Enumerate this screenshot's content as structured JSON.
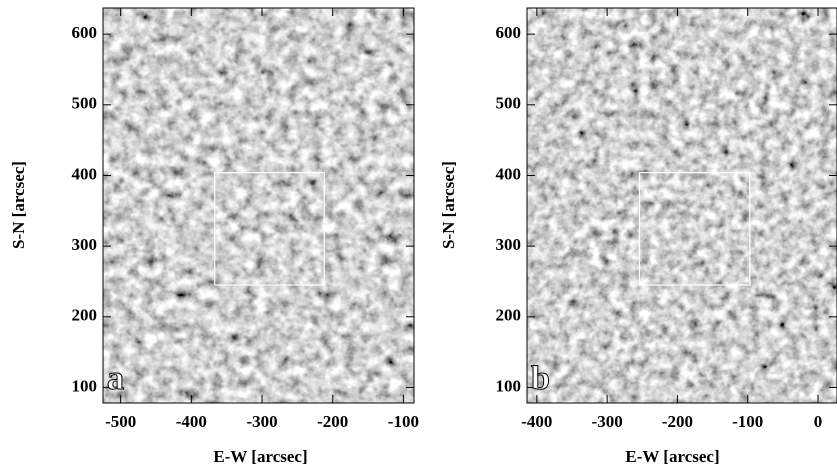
{
  "chart_data": [
    {
      "type": "image",
      "panel_label": "a",
      "xlabel": "E-W [arcsec]",
      "ylabel": "S-N [arcsec]",
      "xlim": [
        -525,
        -85
      ],
      "ylim": [
        78,
        637
      ],
      "xticks": [
        -500,
        -400,
        -300,
        -200,
        -100
      ],
      "yticks": [
        100,
        200,
        300,
        400,
        500,
        600
      ],
      "box": {
        "x": [
          -367,
          -212
        ],
        "y": [
          245,
          404
        ]
      }
    },
    {
      "type": "image",
      "panel_label": "b",
      "xlabel": "E-W [arcsec]",
      "ylabel": "S-N [arcsec]",
      "xlim": [
        -414,
        27
      ],
      "ylim": [
        78,
        637
      ],
      "xticks": [
        -400,
        -300,
        -200,
        -100,
        0
      ],
      "yticks": [
        100,
        200,
        300,
        400,
        500,
        600
      ],
      "box": {
        "x": [
          -254,
          -97
        ],
        "y": [
          245,
          404
        ]
      }
    }
  ]
}
